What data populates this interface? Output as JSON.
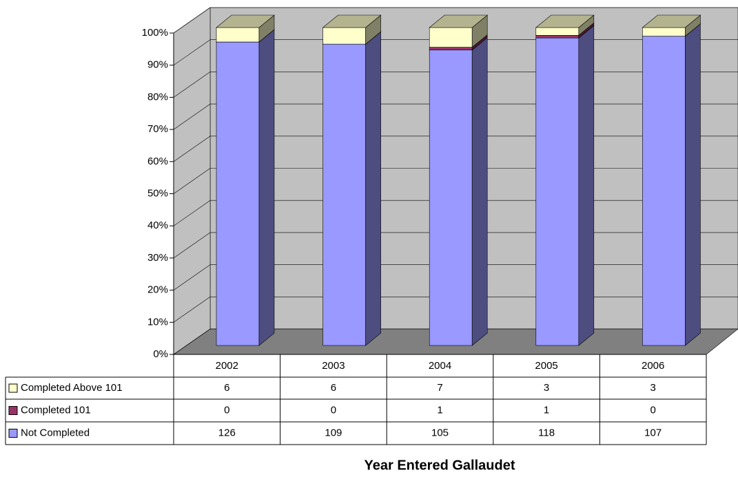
{
  "chart_data": {
    "type": "bar",
    "stacked": "percent",
    "x_label": "Year Entered Gallaudet",
    "categories": [
      "2002",
      "2003",
      "2004",
      "2005",
      "2006"
    ],
    "series": [
      {
        "name": "Not Completed",
        "color": "#9999ff",
        "values": [
          126,
          109,
          105,
          118,
          107
        ]
      },
      {
        "name": "Completed 101",
        "color": "#993366",
        "values": [
          0,
          0,
          1,
          1,
          0
        ]
      },
      {
        "name": "Completed Above 101",
        "color": "#ffffcc",
        "values": [
          6,
          6,
          7,
          3,
          3
        ]
      }
    ],
    "ylim": [
      0,
      100
    ],
    "yticks": [
      {
        "value": 0,
        "label": "0%"
      },
      {
        "value": 10,
        "label": "10%"
      },
      {
        "value": 20,
        "label": "20%"
      },
      {
        "value": 30,
        "label": "30%"
      },
      {
        "value": 40,
        "label": "40%"
      },
      {
        "value": 50,
        "label": "50%"
      },
      {
        "value": 60,
        "label": "60%"
      },
      {
        "value": 70,
        "label": "70%"
      },
      {
        "value": 80,
        "label": "80%"
      },
      {
        "value": 90,
        "label": "90%"
      },
      {
        "value": 100,
        "label": "100%"
      }
    ],
    "grid": true
  }
}
